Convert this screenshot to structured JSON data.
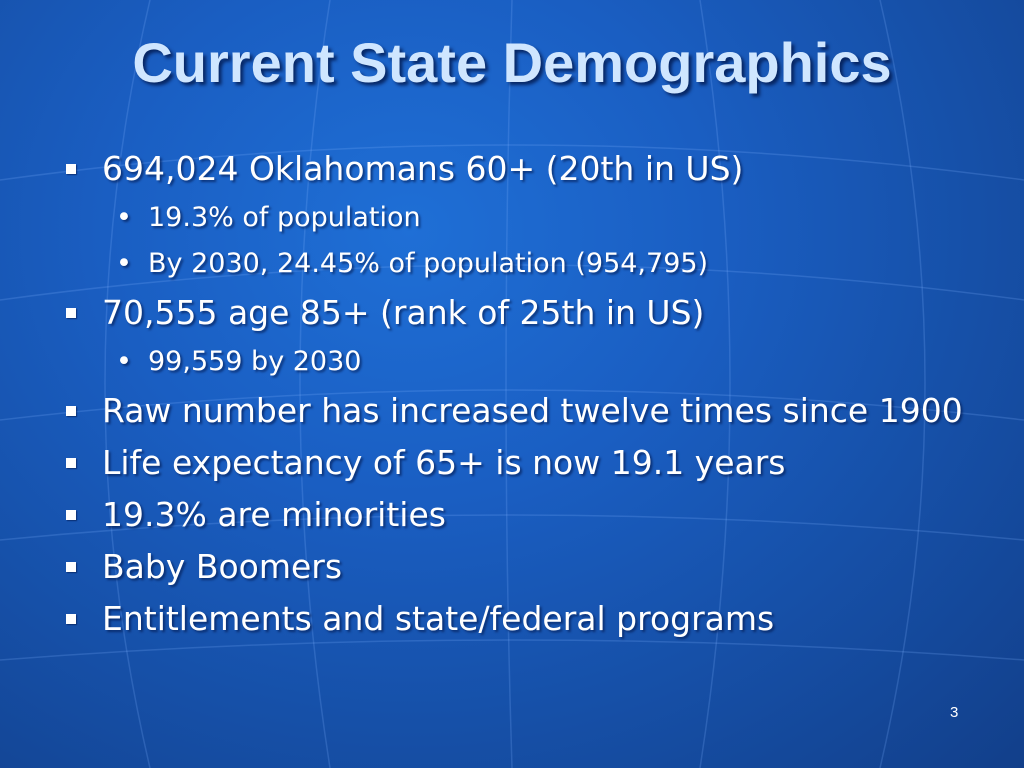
{
  "slide": {
    "title": "Current State Demographics",
    "page_number": "3",
    "items": [
      {
        "text": "694,024 Oklahomans 60+ (20th in US)",
        "subitems": [
          "19.3% of population",
          "By 2030, 24.45% of population (954,795)"
        ]
      },
      {
        "text": "70,555 age 85+ (rank of 25th in US)",
        "subitems": [
          "99,559 by 2030"
        ]
      },
      {
        "text": "Raw number has increased twelve times since 1900"
      },
      {
        "text": "Life expectancy of 65+ is now 19.1 years"
      },
      {
        "text": "19.3% are minorities"
      },
      {
        "text": "Baby Boomers"
      },
      {
        "text": "Entitlements and state/federal programs"
      }
    ],
    "bullet_symbol": "•",
    "colors": {
      "background": "#1a5ec2",
      "title": "#cfe6ff",
      "text": "#ffffff"
    }
  }
}
